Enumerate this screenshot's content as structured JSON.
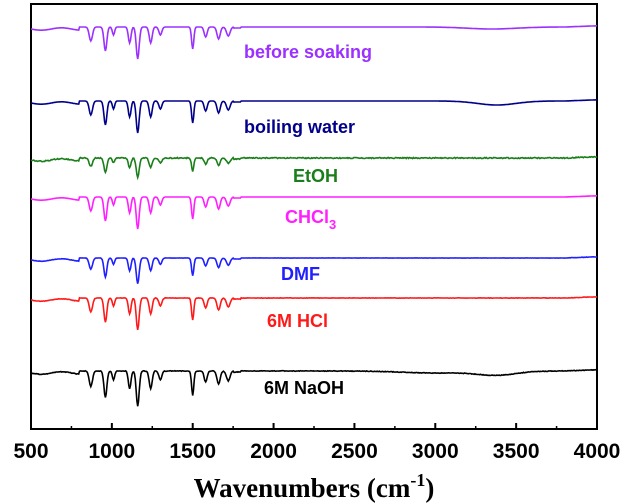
{
  "chart_data": {
    "type": "line",
    "title": "",
    "xlabel": "Wavenumbers (cm",
    "xlabel_superscript": "-1",
    "xlabel_suffix": ")",
    "ylabel": "",
    "xlim": [
      500,
      4000
    ],
    "x_ticks": [
      500,
      1000,
      1500,
      2000,
      2500,
      3000,
      3500,
      4000
    ],
    "x_tick_labels": [
      "500",
      "1000",
      "1500",
      "2000",
      "2500",
      "3000",
      "3500",
      "4000"
    ],
    "grid": false,
    "legend": "inline labels next to each trace",
    "peaks_cm1": [
      870,
      960,
      1010,
      1110,
      1160,
      1240,
      1300,
      1500,
      1580,
      1660,
      1720
    ],
    "series": [
      {
        "name": "before soaking",
        "label_main": "before soaking",
        "label_sub": "",
        "color": "#9b30ff",
        "noise": 0.0,
        "depth": 1.0
      },
      {
        "name": "boiling water",
        "label_main": "boiling water",
        "label_sub": "",
        "color": "#00008b",
        "noise": 0.0,
        "depth": 1.0
      },
      {
        "name": "EtOH",
        "label_main": "EtOH",
        "label_sub": "",
        "color": "#1a7f1a",
        "noise": 0.35,
        "depth": 0.6
      },
      {
        "name": "CHCl3",
        "label_main": "CHCl",
        "label_sub": "3",
        "color": "#ff1fff",
        "noise": 0.0,
        "depth": 1.0
      },
      {
        "name": "DMF",
        "label_main": "DMF",
        "label_sub": "",
        "color": "#1f1fff",
        "noise": 0.1,
        "depth": 0.8
      },
      {
        "name": "6M HCl",
        "label_main": "6M HCl",
        "label_sub": "",
        "color": "#ff1a1a",
        "noise": 0.15,
        "depth": 1.0
      },
      {
        "name": "6M NaOH",
        "label_main": "6M NaOH",
        "label_sub": "",
        "color": "#000000",
        "noise": 0.2,
        "depth": 1.1
      }
    ]
  }
}
